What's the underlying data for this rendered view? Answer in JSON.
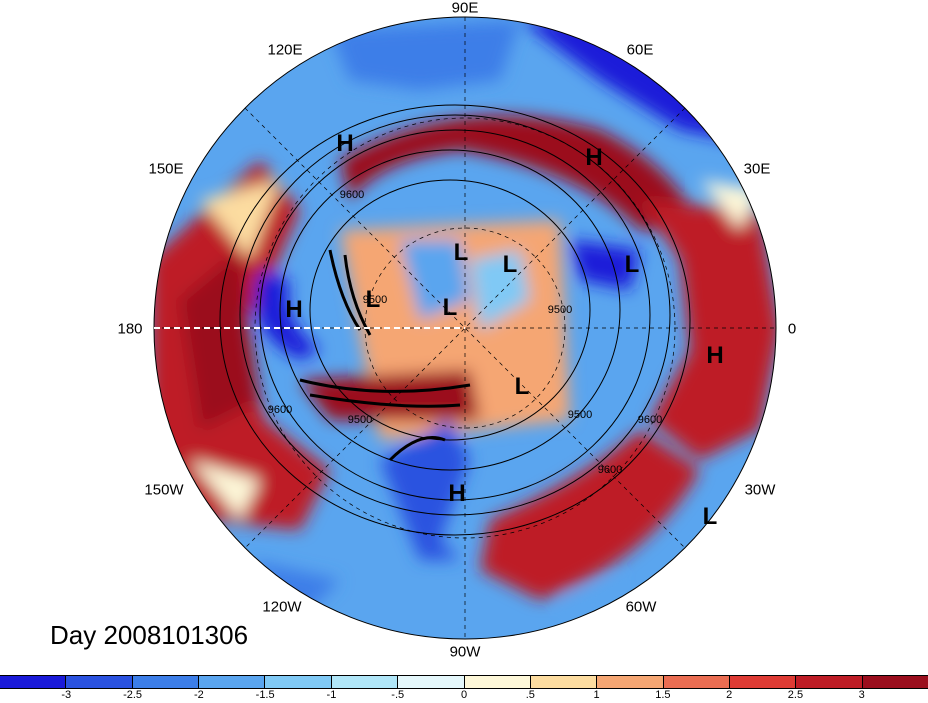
{
  "title": "Day 2008101306",
  "longitude_labels": [
    {
      "id": "90e",
      "text": "90E"
    },
    {
      "id": "60e",
      "text": "60E"
    },
    {
      "id": "120e",
      "text": "120E"
    },
    {
      "id": "30e",
      "text": "30E"
    },
    {
      "id": "150e",
      "text": "150E"
    },
    {
      "id": "180",
      "text": "180"
    },
    {
      "id": "0",
      "text": "0"
    },
    {
      "id": "30w",
      "text": "30W"
    },
    {
      "id": "150w",
      "text": "150W"
    },
    {
      "id": "60w",
      "text": "60W"
    },
    {
      "id": "120w",
      "text": "120W"
    },
    {
      "id": "90w",
      "text": "90W"
    }
  ],
  "pressure_centers": [
    {
      "id": "h1",
      "text": "H"
    },
    {
      "id": "h2",
      "text": "H"
    },
    {
      "id": "h3",
      "text": "H"
    },
    {
      "id": "h4",
      "text": "H"
    },
    {
      "id": "h5",
      "text": "H"
    },
    {
      "id": "l1",
      "text": "L"
    },
    {
      "id": "l2",
      "text": "L"
    },
    {
      "id": "l3",
      "text": "L"
    },
    {
      "id": "l4",
      "text": "L"
    },
    {
      "id": "l5",
      "text": "L"
    },
    {
      "id": "l6",
      "text": "L"
    },
    {
      "id": "l7",
      "text": "L"
    }
  ],
  "contour_labels": [
    "9600",
    "9500",
    "9600",
    "9500",
    "9600",
    "9600",
    "9500",
    "9500"
  ],
  "colorbar": {
    "colors": [
      "#1a1ad9",
      "#2a52e0",
      "#3c7ee8",
      "#5aa5ef",
      "#80c9f5",
      "#b0e6f8",
      "#e4f7fb",
      "#fdf7d8",
      "#fcdca0",
      "#f5a673",
      "#ea6d52",
      "#de3b34",
      "#be1c25",
      "#9b0e1d"
    ],
    "labels": [
      "-3",
      "-2.5",
      "-2",
      "-1.5",
      "-1",
      "-.5",
      "0",
      ".5",
      "1",
      "1.5",
      "2",
      "2.5",
      "3"
    ]
  }
}
